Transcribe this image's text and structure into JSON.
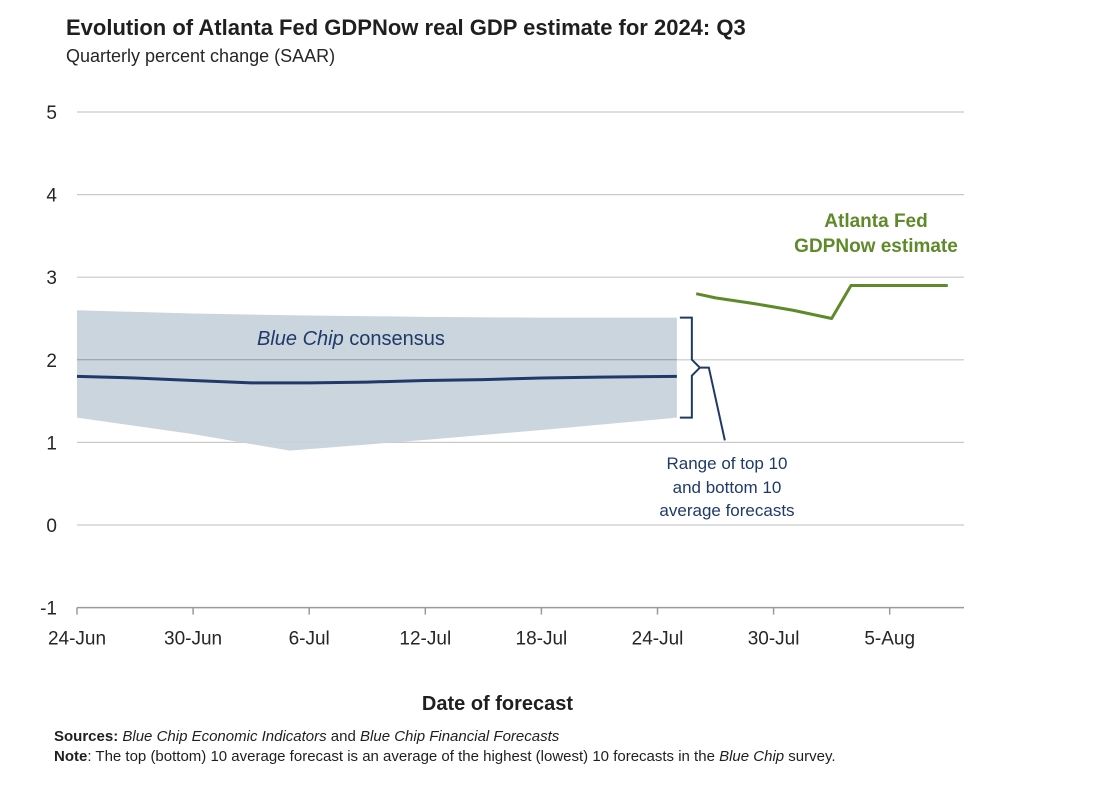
{
  "chart_data": {
    "type": "line",
    "title": "Evolution of Atlanta Fed GDPNow real GDP estimate for 2024: Q3",
    "subtitle": "Quarterly percent change (SAAR)",
    "xlabel": "Date of forecast",
    "ylabel": "",
    "ylim": [
      -1,
      5
    ],
    "yticks": [
      "5",
      "4",
      "3",
      "2",
      "1",
      "0",
      "-1"
    ],
    "ytick_values": [
      5,
      4,
      3,
      2,
      1,
      0,
      -1
    ],
    "xticks": [
      "24-Jun",
      "30-Jun",
      "6-Jul",
      "12-Jul",
      "18-Jul",
      "24-Jul",
      "30-Jul",
      "5-Aug"
    ],
    "xtick_days": [
      0,
      6,
      12,
      18,
      24,
      30,
      36,
      42
    ],
    "grid": true,
    "series": [
      {
        "name": "Blue Chip consensus",
        "color": "#1f3a68",
        "x_days": [
          0,
          3,
          6,
          9,
          12,
          15,
          18,
          21,
          24,
          27,
          31
        ],
        "values": [
          1.8,
          1.78,
          1.75,
          1.72,
          1.72,
          1.73,
          1.75,
          1.76,
          1.78,
          1.79,
          1.8
        ]
      },
      {
        "name": "Atlanta Fed GDPNow estimate",
        "color": "#5e8a2a",
        "x_days": [
          32,
          33,
          35,
          37,
          39,
          40,
          45
        ],
        "values": [
          2.8,
          2.75,
          2.68,
          2.6,
          2.5,
          2.9,
          2.9
        ]
      }
    ],
    "band": {
      "name": "Range of top 10 and bottom 10 average forecasts",
      "color": "#c8d3dc",
      "x_days": [
        0,
        6,
        11,
        18,
        24,
        31
      ],
      "upper": [
        2.6,
        2.56,
        2.54,
        2.52,
        2.51,
        2.51
      ],
      "lower": [
        1.3,
        1.1,
        0.9,
        1.03,
        1.15,
        1.3
      ]
    },
    "annotations": {
      "bluechip_prefix": "Blue Chip",
      "bluechip_suffix": " consensus",
      "gdpnow_line1": "Atlanta Fed",
      "gdpnow_line2": "GDPNow estimate",
      "range_line1": "Range of top 10",
      "range_line2": "and bottom 10",
      "range_line3": "average forecasts"
    }
  },
  "footer": {
    "sources_label": "Sources:",
    "sources_pub1": "Blue Chip Economic Indicators",
    "sources_and": " and ",
    "sources_pub2": "Blue Chip Financial Forecasts",
    "note_label": "Note",
    "note_text": ": The top (bottom) 10 average forecast is an average of the highest (lowest) 10 forecasts in the ",
    "note_pub": "Blue Chip",
    "note_end": " survey."
  }
}
